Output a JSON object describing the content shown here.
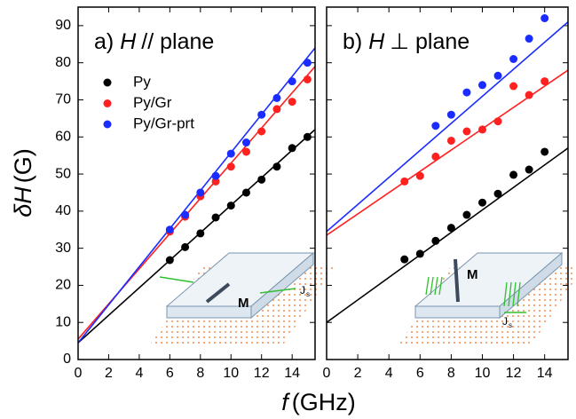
{
  "shared": {
    "xlabel_symbol": "f",
    "xlabel_unit": "(GHz)",
    "ylabel_symbol": "δH",
    "ylabel_unit": "(G)"
  },
  "chart_data": [
    {
      "type": "scatter",
      "panel_label": "a)",
      "title_symbol": "H",
      "title_text": "// plane",
      "xlim": [
        0,
        15.5
      ],
      "ylim": [
        0,
        95
      ],
      "xticks": [
        0,
        2,
        4,
        6,
        8,
        10,
        12,
        14
      ],
      "yticks": [
        0,
        10,
        20,
        30,
        40,
        50,
        60,
        70,
        80,
        90
      ],
      "show_ytick_labels": true,
      "legend": "upper left",
      "inset_labels": {
        "magnetization": "M",
        "current": "J",
        "current_sub": "s"
      },
      "series": [
        {
          "name": "Py",
          "color": "#000000",
          "x": [
            6,
            7,
            8,
            9,
            10,
            11,
            12,
            13,
            14,
            15
          ],
          "values": [
            26.8,
            30.3,
            34,
            38.3,
            41.5,
            45,
            48.5,
            52,
            57,
            60
          ],
          "fit_x": [
            0,
            15.5
          ],
          "fit_values": [
            4.5,
            62
          ]
        },
        {
          "name": "Py/Gr",
          "color": "#ff2020",
          "x": [
            6,
            7,
            8,
            9,
            10,
            11,
            12,
            13,
            14,
            15
          ],
          "values": [
            34.5,
            38.5,
            44,
            48,
            52,
            56,
            61.5,
            67.5,
            69.5,
            75.5
          ],
          "fit_x": [
            0,
            15.5
          ],
          "fit_values": [
            5.5,
            79
          ]
        },
        {
          "name": "Py/Gr-prt",
          "color": "#1a2cff",
          "x": [
            6,
            7,
            8,
            9,
            10,
            11,
            12,
            13,
            14,
            15
          ],
          "values": [
            35,
            39,
            45,
            49.5,
            55.5,
            58.5,
            66,
            70.5,
            75,
            80
          ],
          "fit_x": [
            0,
            15.5
          ],
          "fit_values": [
            4.5,
            84
          ]
        }
      ]
    },
    {
      "type": "scatter",
      "panel_label": "b)",
      "title_symbol": "H",
      "title_text": "⊥ plane",
      "xlim": [
        0,
        15.5
      ],
      "ylim": [
        0,
        95
      ],
      "xticks": [
        0,
        2,
        4,
        6,
        8,
        10,
        12,
        14
      ],
      "yticks": [
        0,
        10,
        20,
        30,
        40,
        50,
        60,
        70,
        80,
        90
      ],
      "show_ytick_labels": false,
      "inset_labels": {
        "magnetization": "M",
        "current": "J",
        "current_sub": "s"
      },
      "series": [
        {
          "color": "#000000",
          "x": [
            5,
            6,
            7,
            8,
            9,
            10,
            11,
            12,
            13,
            14
          ],
          "values": [
            27,
            28.5,
            32,
            35.5,
            39,
            42.3,
            44.7,
            49.8,
            51.2,
            56
          ],
          "fit_x": [
            0,
            15.5
          ],
          "fit_values": [
            10,
            57
          ]
        },
        {
          "color": "#ff2020",
          "x": [
            5,
            6,
            7,
            8,
            9,
            10,
            11,
            12,
            13,
            14
          ],
          "values": [
            48,
            49.5,
            54.7,
            59,
            61.5,
            62,
            64.2,
            73.7,
            71.3,
            75
          ],
          "fit_x": [
            0,
            15.5
          ],
          "fit_values": [
            33.5,
            78
          ]
        },
        {
          "color": "#1a2cff",
          "x": [
            7,
            8,
            9,
            10,
            11,
            12,
            13,
            14
          ],
          "values": [
            63,
            66,
            72,
            74,
            76.5,
            81,
            86.5,
            92
          ],
          "fit_x": [
            0,
            15.5
          ],
          "fit_values": [
            34.5,
            91
          ]
        }
      ]
    }
  ]
}
